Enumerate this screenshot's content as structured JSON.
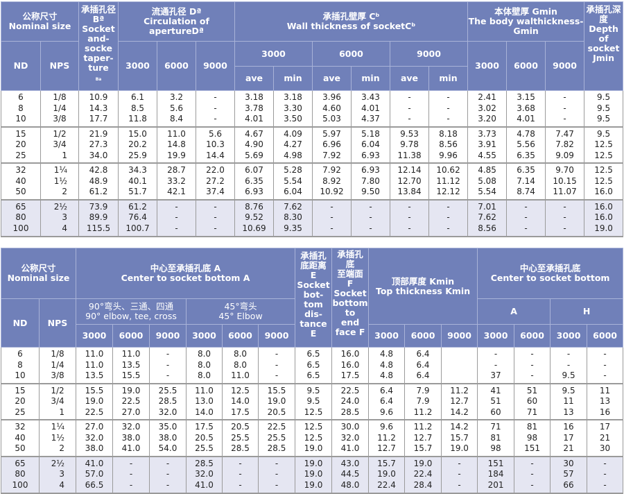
{
  "table1": {
    "headers": {
      "nominal": "公称尺寸\nNominal size",
      "nd": "ND",
      "nps": "NPS",
      "b": "承插孔径\nBª\nSocket\nand-\nsocke\ntaper-\nture",
      "b_sub": "Ba",
      "d": "流通孔径 Dª\nCirculation of apertureDª",
      "c": "承插孔壁厚 Cᵇ\nWall thickness of socketCᵇ",
      "g": "本体壁厚 Gmin\nThe body walthickness-\nGmin",
      "j": "承插孔深\n度\nDepth\nof\nsocket\nJmin",
      "classes": [
        "3000",
        "6000",
        "9000"
      ],
      "ave": "ave",
      "min": "min"
    },
    "groups": [
      [
        [
          "6",
          "1/8",
          "10.9",
          "6.1",
          "3.2",
          "-",
          "3.18",
          "3.18",
          "3.96",
          "3.43",
          "-",
          "-",
          "2.41",
          "3.15",
          "-",
          "9.5"
        ],
        [
          "8",
          "1/4",
          "14.3",
          "8.5",
          "5.6",
          "-",
          "3.78",
          "3.30",
          "4.60",
          "4.01",
          "-",
          "-",
          "3.02",
          "3.68",
          "-",
          "9.5"
        ],
        [
          "10",
          "3/8",
          "17.7",
          "11.8",
          "8.4",
          "-",
          "4.01",
          "3.50",
          "5.03",
          "4.37",
          "-",
          "-",
          "3.20",
          "4.01",
          "-",
          "9.5"
        ]
      ],
      [
        [
          "15",
          "1/2",
          "21.9",
          "15.0",
          "11.0",
          "5.6",
          "4.67",
          "4.09",
          "5.97",
          "5.18",
          "9.53",
          "8.18",
          "3.73",
          "4.78",
          "7.47",
          "9.5"
        ],
        [
          "20",
          "3/4",
          "27.3",
          "20.2",
          "14.8",
          "10.3",
          "4.90",
          "4.27",
          "6.96",
          "6.04",
          "9.78",
          "8.56",
          "3.91",
          "5.56",
          "7.82",
          "12.5"
        ],
        [
          "25",
          "1",
          "34.0",
          "25.9",
          "19.9",
          "14.4",
          "5.69",
          "4.98",
          "7.92",
          "6.93",
          "11.38",
          "9.96",
          "4.55",
          "6.35",
          "9.09",
          "12.5"
        ]
      ],
      [
        [
          "32",
          "1¼",
          "42.8",
          "34.3",
          "28.7",
          "22.0",
          "6.07",
          "5.28",
          "7.92",
          "6.93",
          "12.14",
          "10.62",
          "4.85",
          "6.35",
          "9.70",
          "12.5"
        ],
        [
          "40",
          "1½",
          "48.9",
          "40.1",
          "33.2",
          "27.2",
          "6.35",
          "5.54",
          "8.92",
          "7.80",
          "12.70",
          "11.12",
          "5.08",
          "7.14",
          "10.15",
          "12.5"
        ],
        [
          "50",
          "2",
          "61.2",
          "51.7",
          "42.1",
          "37.4",
          "6.93",
          "6.04",
          "10.92",
          "9.50",
          "13.84",
          "12.12",
          "5.54",
          "8.74",
          "11.07",
          "16.0"
        ]
      ],
      [
        [
          "65",
          "2½",
          "73.9",
          "61.2",
          "-",
          "-",
          "8.76",
          "7.62",
          "-",
          "-",
          "-",
          "-",
          "7.01",
          "-",
          "-",
          "16.0"
        ],
        [
          "80",
          "3",
          "89.9",
          "76.4",
          "-",
          "-",
          "9.52",
          "8.30",
          "-",
          "-",
          "-",
          "-",
          "7.62",
          "-",
          "-",
          "16.0"
        ],
        [
          "100",
          "4",
          "115.5",
          "100.7",
          "-",
          "-",
          "10.69",
          "9.35",
          "-",
          "-",
          "-",
          "-",
          "8.56",
          "-",
          "-",
          "19.0"
        ]
      ]
    ]
  },
  "table2": {
    "headers": {
      "nominal": "公称尺寸\nNominal size",
      "nd": "ND",
      "nps": "NPS",
      "a": "中心至承插孔底 A\nCenter to socket bottom A",
      "a90": "90°弯头、三通、四通\n90° elbow, tee, cross",
      "a45": "45°弯头\n45° Elbow",
      "e": "承插孔\n底距离\nE\nSocket\nbot-\ntom\ndis-\ntance E",
      "f": "承插孔\n底\n至端面\nF\nSocket\nbottom\nto\nend\nface F",
      "k": "顶部厚度 Kmin\nTop thickness Kmin",
      "ah": "中心至承插孔底\nCenter to socket bottom",
      "a_col": "A",
      "h_col": "H",
      "classes": [
        "3000",
        "6000",
        "9000"
      ]
    },
    "groups": [
      [
        [
          "6",
          "1/8",
          "11.0",
          "11.0",
          "-",
          "8.0",
          "8.0",
          "-",
          "6.5",
          "16.0",
          "4.8",
          "6.4",
          "",
          "-",
          "-",
          "-",
          "-"
        ],
        [
          "8",
          "1/4",
          "11.0",
          "13.5",
          "-",
          "8.0",
          "8.0",
          "-",
          "6.5",
          "16.0",
          "4.8",
          "6.4",
          "",
          "-",
          "-",
          "-",
          "-"
        ],
        [
          "10",
          "3/8",
          "13.5",
          "15.5",
          "-",
          "8.0",
          "11.0",
          "-",
          "6.5",
          "17.5",
          "4.8",
          "6.4",
          "",
          "37",
          "-",
          "9.5",
          "-"
        ]
      ],
      [
        [
          "15",
          "1/2",
          "15.5",
          "19.0",
          "25.5",
          "11.0",
          "12.5",
          "15.5",
          "9.5",
          "22.5",
          "6.4",
          "7.9",
          "11.2",
          "41",
          "51",
          "9.5",
          "11"
        ],
        [
          "20",
          "3/4",
          "19.0",
          "22.5",
          "28.5",
          "13.0",
          "14.0",
          "19.0",
          "9.5",
          "24.0",
          "6.4",
          "7.9",
          "12.7",
          "51",
          "60",
          "11",
          "13"
        ],
        [
          "25",
          "1",
          "22.5",
          "27.0",
          "32.0",
          "14.0",
          "17.5",
          "20.5",
          "12.5",
          "28.5",
          "9.6",
          "11.2",
          "14.2",
          "60",
          "71",
          "13",
          "16"
        ]
      ],
      [
        [
          "32",
          "1¼",
          "27.0",
          "32.0",
          "35.0",
          "17.5",
          "20.5",
          "22.5",
          "12.5",
          "30.0",
          "9.6",
          "11.2",
          "14.2",
          "71",
          "81",
          "16",
          "17"
        ],
        [
          "40",
          "1½",
          "32.0",
          "38.0",
          "38.0",
          "20.5",
          "25.5",
          "25.5",
          "12.5",
          "32.0",
          "11.2",
          "12.7",
          "15.7",
          "81",
          "98",
          "17",
          "21"
        ],
        [
          "50",
          "2",
          "38.0",
          "41.0",
          "54.0",
          "25.5",
          "28.5",
          "28.5",
          "19.0",
          "41.0",
          "12.7",
          "15.7",
          "19.0",
          "98",
          "151",
          "21",
          "30"
        ]
      ],
      [
        [
          "65",
          "2½",
          "41.0",
          "-",
          "-",
          "28.5",
          "-",
          "-",
          "19.0",
          "43.0",
          "15.7",
          "19.0",
          "-",
          "151",
          "-",
          "30",
          "-"
        ],
        [
          "80",
          "3",
          "57.0",
          "-",
          "-",
          "32.0",
          "-",
          "-",
          "19.0",
          "44.5",
          "19.0",
          "22.4",
          "-",
          "184",
          "-",
          "57",
          "-"
        ],
        [
          "100",
          "4",
          "66.5",
          "-",
          "-",
          "41.0",
          "-",
          "-",
          "19.0",
          "48.0",
          "22.4",
          "28.4",
          "-",
          "201",
          "-",
          "66",
          "-"
        ]
      ]
    ]
  },
  "colors": {
    "header_bg": "#7080b9",
    "header_text": "#ffffff",
    "shaded_row": "#e5e6f2"
  }
}
